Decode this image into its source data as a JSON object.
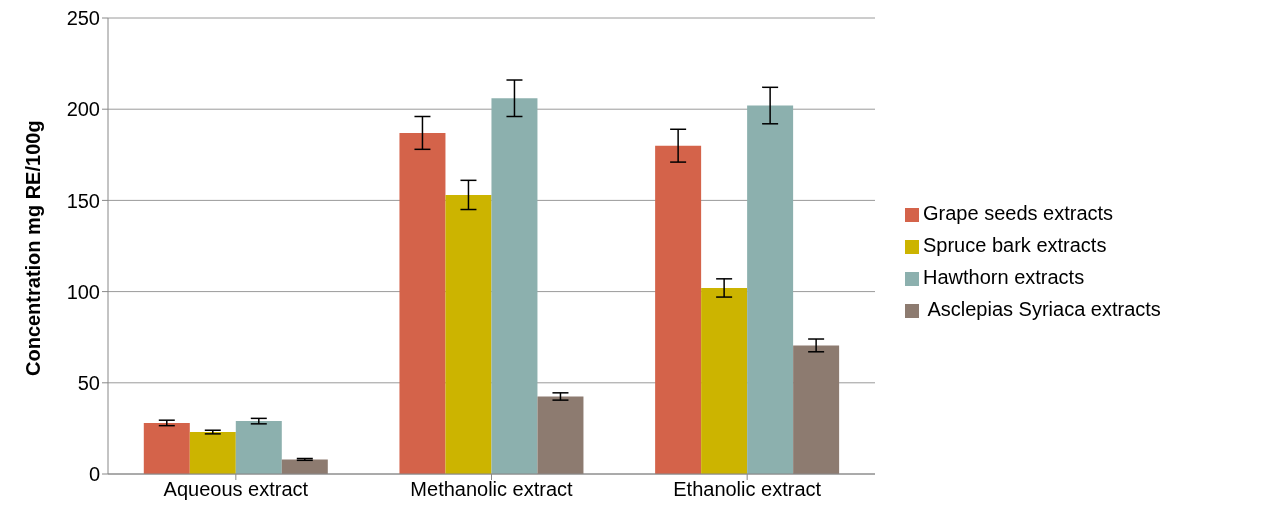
{
  "chart_data": {
    "type": "bar",
    "ylabel": "Concentration mg RE/100g",
    "categories": [
      "Aqueous extract",
      "Methanolic extract",
      "Ethanolic extract"
    ],
    "series": [
      {
        "name": "Grape seeds extracts",
        "color": "#d4634a",
        "values": [
          28,
          187,
          180
        ],
        "errors": [
          1.5,
          9,
          9
        ]
      },
      {
        "name": "Spruce bark extracts",
        "color": "#ccb400",
        "values": [
          23,
          153,
          102
        ],
        "errors": [
          1,
          8,
          5
        ]
      },
      {
        "name": "Hawthorn extracts",
        "color": "#8cb0ae",
        "values": [
          29,
          206,
          202
        ],
        "errors": [
          1.5,
          10,
          10
        ]
      },
      {
        "name": " Asclepias Syriaca extracts",
        "color": "#8d7b70",
        "values": [
          8,
          42.5,
          70.5
        ],
        "errors": [
          0.5,
          2,
          3.5
        ]
      }
    ],
    "ylim": [
      0,
      250
    ],
    "yticks": [
      0,
      50,
      100,
      150,
      200,
      250
    ],
    "grid": "y",
    "legend": "right"
  }
}
